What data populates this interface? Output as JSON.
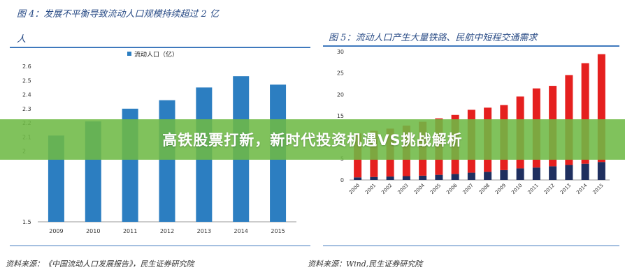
{
  "banner": {
    "title": "高铁股票打新，新时代投资机遇VS挑战解析"
  },
  "colors": {
    "blue": "#2c7ec1",
    "red": "#e5201f",
    "navy": "#1f2f5f",
    "rule": "#3f79bd",
    "banner": "#6eba46"
  },
  "chart_data": [
    {
      "type": "bar",
      "title_line1": "图 4：发展不平衡导致流动人口规模持续超过 2 亿",
      "title_line2": "人",
      "source": "资料来源：《中国流动人口发展报告》，民生证券研究院",
      "categories": [
        "2009",
        "2010",
        "2011",
        "2012",
        "2013",
        "2014",
        "2015"
      ],
      "series": [
        {
          "name": "流动人口（亿）",
          "values": [
            2.11,
            2.21,
            2.3,
            2.36,
            2.45,
            2.53,
            2.47
          ]
        }
      ],
      "ylim": [
        1.5,
        2.6
      ],
      "yticks": [
        "1.5",
        "2",
        "2.1",
        "2.2",
        "2.3",
        "2.4",
        "2.5",
        "2.6"
      ],
      "legend": "top",
      "grid": false
    },
    {
      "type": "bar",
      "stacked": true,
      "title": "图 5：流动人口产生大量铁路、民航中短程交通需求",
      "source": "资料来源：Wind,民生证券研究院",
      "categories": [
        "2000",
        "2001",
        "2002",
        "2003",
        "2004",
        "2005",
        "2006",
        "2007",
        "2008",
        "2009",
        "2010",
        "2011",
        "2012",
        "2013",
        "2014",
        "2015"
      ],
      "series": [
        {
          "values": [
            0.6,
            0.7,
            0.8,
            0.9,
            1.0,
            1.2,
            1.4,
            1.7,
            1.9,
            2.3,
            2.7,
            2.9,
            3.2,
            3.5,
            3.8,
            4.2
          ]
        },
        {
          "values": [
            10.3,
            10.8,
            11.2,
            11.8,
            12.6,
            13.2,
            13.8,
            14.7,
            15.0,
            15.2,
            16.8,
            18.5,
            18.8,
            21.0,
            23.5,
            25.2
          ]
        }
      ],
      "ylim": [
        0,
        30
      ],
      "yticks": [
        "0",
        "5",
        "10",
        "15",
        "20",
        "25",
        "30"
      ],
      "grid": false
    }
  ]
}
